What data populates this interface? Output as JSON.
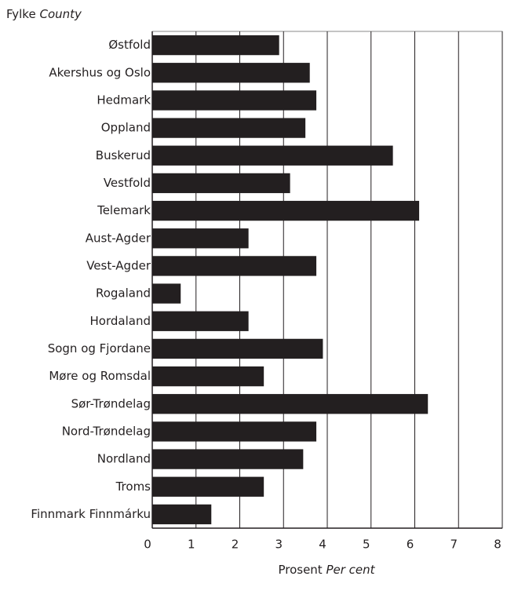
{
  "chart_data": {
    "type": "barh",
    "ylabel": [
      "Fylke",
      "County"
    ],
    "xlabel": [
      "Prosent",
      "Per cent"
    ],
    "categories": [
      "Østfold",
      "Akershus og Oslo",
      "Hedmark",
      "Oppland",
      "Buskerud",
      "Vestfold",
      "Telemark",
      "Aust-Agder",
      "Vest-Agder",
      "Rogaland",
      "Hordaland",
      "Sogn og Fjordane",
      "Møre og Romsdal",
      "Sør-Trøndelag",
      "Nord-Trøndelag",
      "Nordland",
      "Troms",
      "Finnmark Finnmárku"
    ],
    "values": [
      2.9,
      3.6,
      3.75,
      3.5,
      5.5,
      3.15,
      6.1,
      2.2,
      3.75,
      0.65,
      2.2,
      3.9,
      2.55,
      6.3,
      3.75,
      3.45,
      2.55,
      1.35
    ],
    "color": "#231f20",
    "xlim": [
      0,
      8
    ],
    "xticks": [
      0,
      1,
      2,
      3,
      4,
      5,
      6,
      7,
      8
    ],
    "grid": true
  }
}
